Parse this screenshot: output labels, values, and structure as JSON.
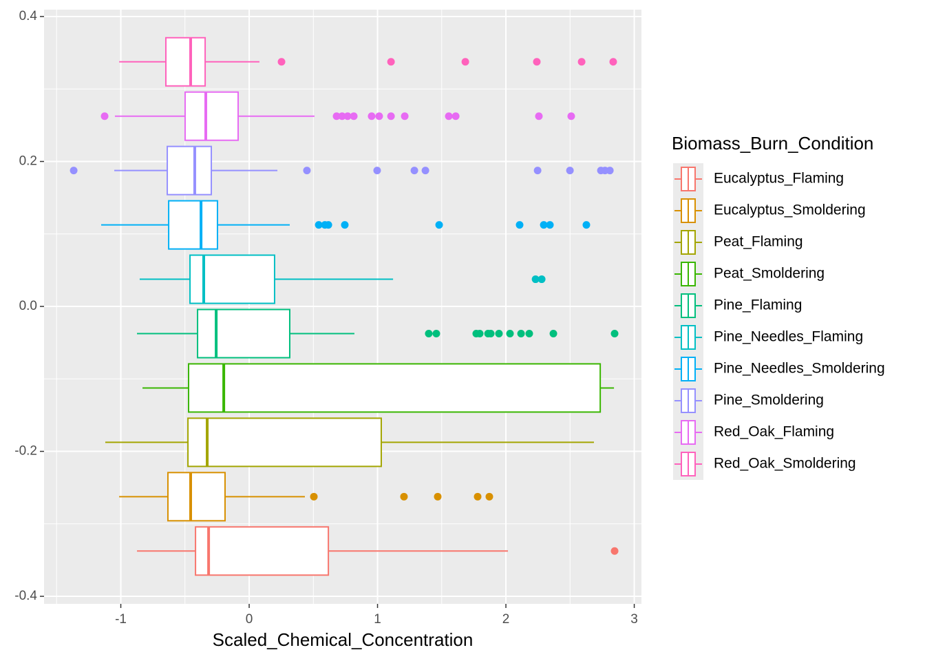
{
  "chart_data": {
    "type": "boxplot",
    "orientation": "horizontal",
    "x_label": "Scaled_Chemical_Concentration",
    "legend_title": "Biomass_Burn_Condition",
    "legend_position": "right",
    "grid": true,
    "xlim": [
      -1.598,
      3.056
    ],
    "xticks": [
      -1,
      0,
      1,
      2,
      3
    ],
    "ylim": [
      -0.4104,
      0.4095
    ],
    "yticks": [
      -0.4,
      -0.2,
      {
        "value": 0,
        "label": "0.0"
      },
      0.2,
      0.4
    ],
    "series": [
      {
        "name": "Eucalyptus_Flaming",
        "color": "#F8766D",
        "y": -0.3375,
        "whisker_low": -0.874,
        "q1": -0.418,
        "median": -0.316,
        "q3": 0.617,
        "whisker_high": 2.016,
        "outliers": [
          2.847
        ]
      },
      {
        "name": "Eucalyptus_Smoldering",
        "color": "#D89000",
        "y": -0.2625,
        "whisker_low": -1.013,
        "q1": -0.633,
        "median": -0.456,
        "q3": -0.188,
        "whisker_high": 0.434,
        "outliers": [
          0.504,
          1.206,
          1.469,
          1.78,
          1.871
        ]
      },
      {
        "name": "Peat_Flaming",
        "color": "#A3A500",
        "y": -0.1875,
        "whisker_low": -1.121,
        "q1": -0.477,
        "median": -0.327,
        "q3": 1.029,
        "whisker_high": 2.686,
        "outliers": []
      },
      {
        "name": "Peat_Smoldering",
        "color": "#39B600",
        "y": -0.1125,
        "whisker_low": -0.831,
        "q1": -0.472,
        "median": -0.198,
        "q3": 2.735,
        "whisker_high": 2.842,
        "outliers": []
      },
      {
        "name": "Pine_Flaming",
        "color": "#00BF7D",
        "y": -0.0375,
        "whisker_low": -0.874,
        "q1": -0.402,
        "median": -0.257,
        "q3": 0.316,
        "whisker_high": 0.82,
        "outliers": [
          1.399,
          1.458,
          1.769,
          1.796,
          1.861,
          1.882,
          1.946,
          2.032,
          2.118,
          2.182,
          2.37,
          2.847
        ]
      },
      {
        "name": "Pine_Needles_Flaming",
        "color": "#00BFC4",
        "y": 0.0375,
        "whisker_low": -0.853,
        "q1": -0.461,
        "median": -0.354,
        "q3": 0.198,
        "whisker_high": 1.121,
        "outliers": [
          2.231,
          2.279
        ]
      },
      {
        "name": "Pine_Needles_Smoldering",
        "color": "#00B0F6",
        "y": 0.1125,
        "whisker_low": -1.153,
        "q1": -0.627,
        "median": -0.375,
        "q3": -0.247,
        "whisker_high": 0.316,
        "outliers": [
          0.542,
          0.59,
          0.617,
          0.745,
          1.48,
          2.107,
          2.295,
          2.343,
          2.627
        ]
      },
      {
        "name": "Pine_Smoldering",
        "color": "#9590FF",
        "y": 0.1875,
        "whisker_low": -1.051,
        "q1": -0.638,
        "median": -0.424,
        "q3": -0.295,
        "whisker_high": 0.22,
        "outliers": [
          -1.367,
          0.45,
          0.997,
          1.287,
          1.373,
          2.247,
          2.499,
          2.74,
          2.772,
          2.81
        ]
      },
      {
        "name": "Red_Oak_Flaming",
        "color": "#E76BF3",
        "y": 0.2625,
        "whisker_low": -1.046,
        "q1": -0.499,
        "median": -0.338,
        "q3": -0.086,
        "whisker_high": 0.509,
        "outliers": [
          -1.126,
          0.681,
          0.724,
          0.767,
          0.815,
          0.954,
          1.013,
          1.105,
          1.212,
          1.555,
          1.609,
          2.257,
          2.509
        ]
      },
      {
        "name": "Red_Oak_Smoldering",
        "color": "#FF62BC",
        "y": 0.3375,
        "whisker_low": -1.013,
        "q1": -0.649,
        "median": -0.456,
        "q3": -0.343,
        "whisker_high": 0.08,
        "outliers": [
          0.252,
          1.105,
          1.684,
          2.241,
          2.59,
          2.836
        ]
      }
    ]
  }
}
